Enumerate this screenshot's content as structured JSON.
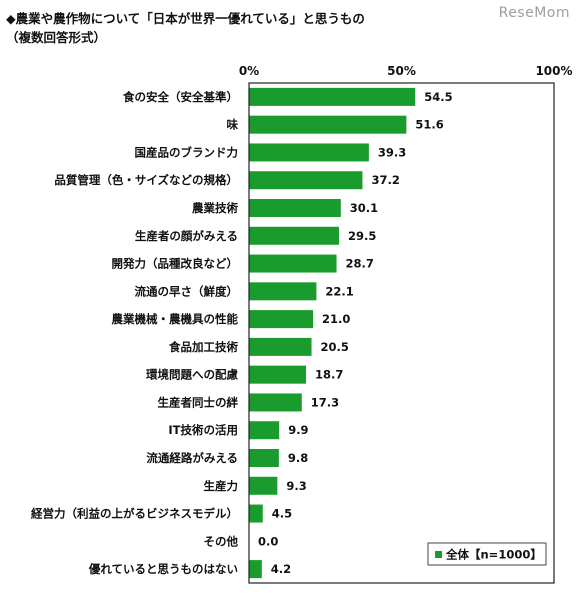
{
  "header": {
    "title": "◆農業や農作物について「日本が世界一優れている」と思うもの",
    "subtitle": "（複数回答形式）",
    "watermark": "ReseMom"
  },
  "colors": {
    "bar": "#1a9b2e",
    "frame": "#222222"
  },
  "chart_data": {
    "type": "bar",
    "orientation": "horizontal",
    "categories": [
      "食の安全（安全基準）",
      "味",
      "国産品のブランド力",
      "品質管理（色・サイズなどの規格）",
      "農業技術",
      "生産者の顔がみえる",
      "開発力（品種改良など）",
      "流通の早さ（鮮度）",
      "農業機械・農機具の性能",
      "食品加工技術",
      "環境問題への配慮",
      "生産者同士の絆",
      "IT技術の活用",
      "流通経路がみえる",
      "生産力",
      "経営力（利益の上がるビジネスモデル）",
      "その他",
      "優れていると思うものはない"
    ],
    "series": [
      {
        "name": "全体【n=1000】",
        "values": [
          54.5,
          51.6,
          39.3,
          37.2,
          30.1,
          29.5,
          28.7,
          22.1,
          21.0,
          20.5,
          18.7,
          17.3,
          9.9,
          9.8,
          9.3,
          4.5,
          0.0,
          4.2
        ],
        "labels": [
          "54.5",
          "51.6",
          "39.3",
          "37.2",
          "30.1",
          "29.5",
          "28.7",
          "22.1",
          "21.0",
          "20.5",
          "18.7",
          "17.3",
          "9.9",
          "9.8",
          "9.3",
          "4.5",
          "0.0",
          "4.2"
        ]
      }
    ],
    "xlim": [
      0,
      100
    ],
    "ticks": [
      0,
      50,
      100
    ],
    "tick_labels": [
      "0%",
      "50%",
      "100%"
    ],
    "legend": {
      "position": "bottom-right",
      "label": "全体【n=1000】"
    },
    "grid": false
  }
}
